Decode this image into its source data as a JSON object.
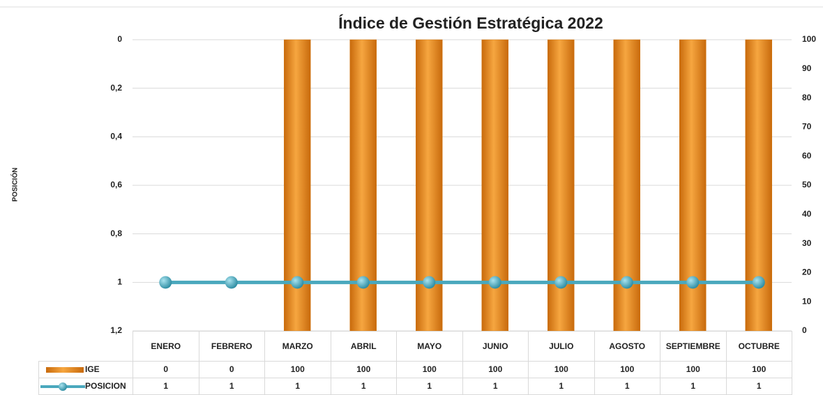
{
  "chart_data": {
    "type": "bar",
    "title": "Índice de Gestión Estratégica 2022",
    "y_label": "POSICIÓN",
    "categories": [
      "ENERO",
      "FEBRERO",
      "MARZO",
      "ABRIL",
      "MAYO",
      "JUNIO",
      "JULIO",
      "AGOSTO",
      "SEPTIEMBRE",
      "OCTUBRE"
    ],
    "series": [
      {
        "name": "IGE",
        "type": "bar",
        "color": "#f0951f",
        "axis": "y2",
        "values": [
          0,
          0,
          100,
          100,
          100,
          100,
          100,
          100,
          100,
          100
        ]
      },
      {
        "name": "POSICION",
        "type": "line",
        "color": "#4aa8bd",
        "values": [
          1,
          1,
          1,
          1,
          1,
          1,
          1,
          1,
          1,
          1
        ]
      }
    ],
    "ylim": [
      0,
      1.2
    ],
    "y_inverted": true,
    "yticks": [
      0,
      {
        "value": 0.2,
        "label": "0,2"
      },
      {
        "value": 0.4,
        "label": "0,4"
      },
      {
        "value": 0.6,
        "label": "0,6"
      },
      {
        "value": 0.8,
        "label": "0,8"
      },
      1,
      {
        "value": 1.2,
        "label": "1,2"
      }
    ],
    "y2lim": [
      0,
      100
    ],
    "y2ticks": [
      0,
      10,
      20,
      30,
      40,
      50,
      60,
      70,
      80,
      90,
      100
    ],
    "grid": true
  }
}
